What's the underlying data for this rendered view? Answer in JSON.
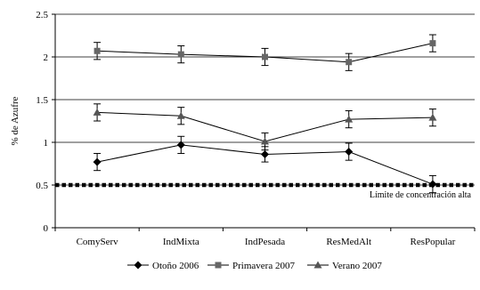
{
  "chart_data": {
    "type": "line",
    "categories": [
      "ComyServ",
      "IndMixta",
      "IndPesada",
      "ResMedAlt",
      "ResPopular"
    ],
    "ylabel": "% de Azufre",
    "ylim": [
      0,
      2.5
    ],
    "yticks": [
      "0",
      "0.5",
      "1",
      "1.5",
      "2",
      "2.5"
    ],
    "grid": true,
    "legend_position": "bottom",
    "series": [
      {
        "name": "Otoño 2006",
        "marker": "diamond",
        "color": "#000000",
        "values": [
          0.77,
          0.97,
          0.86,
          0.89,
          0.51
        ],
        "errors": [
          0.1,
          0.1,
          0.09,
          0.1,
          0.1
        ]
      },
      {
        "name": "Primavera 2007",
        "marker": "square",
        "color": "#666666",
        "values": [
          2.07,
          2.03,
          2.0,
          1.94,
          2.16
        ],
        "errors": [
          0.1,
          0.1,
          0.1,
          0.1,
          0.1
        ]
      },
      {
        "name": "Verano 2007",
        "marker": "triangle",
        "color": "#555555",
        "values": [
          1.35,
          1.31,
          1.01,
          1.27,
          1.29
        ],
        "errors": [
          0.1,
          0.1,
          0.1,
          0.1,
          0.1
        ]
      }
    ],
    "reference_line": {
      "value": 0.5,
      "label": "Límite de concentración alta"
    }
  }
}
